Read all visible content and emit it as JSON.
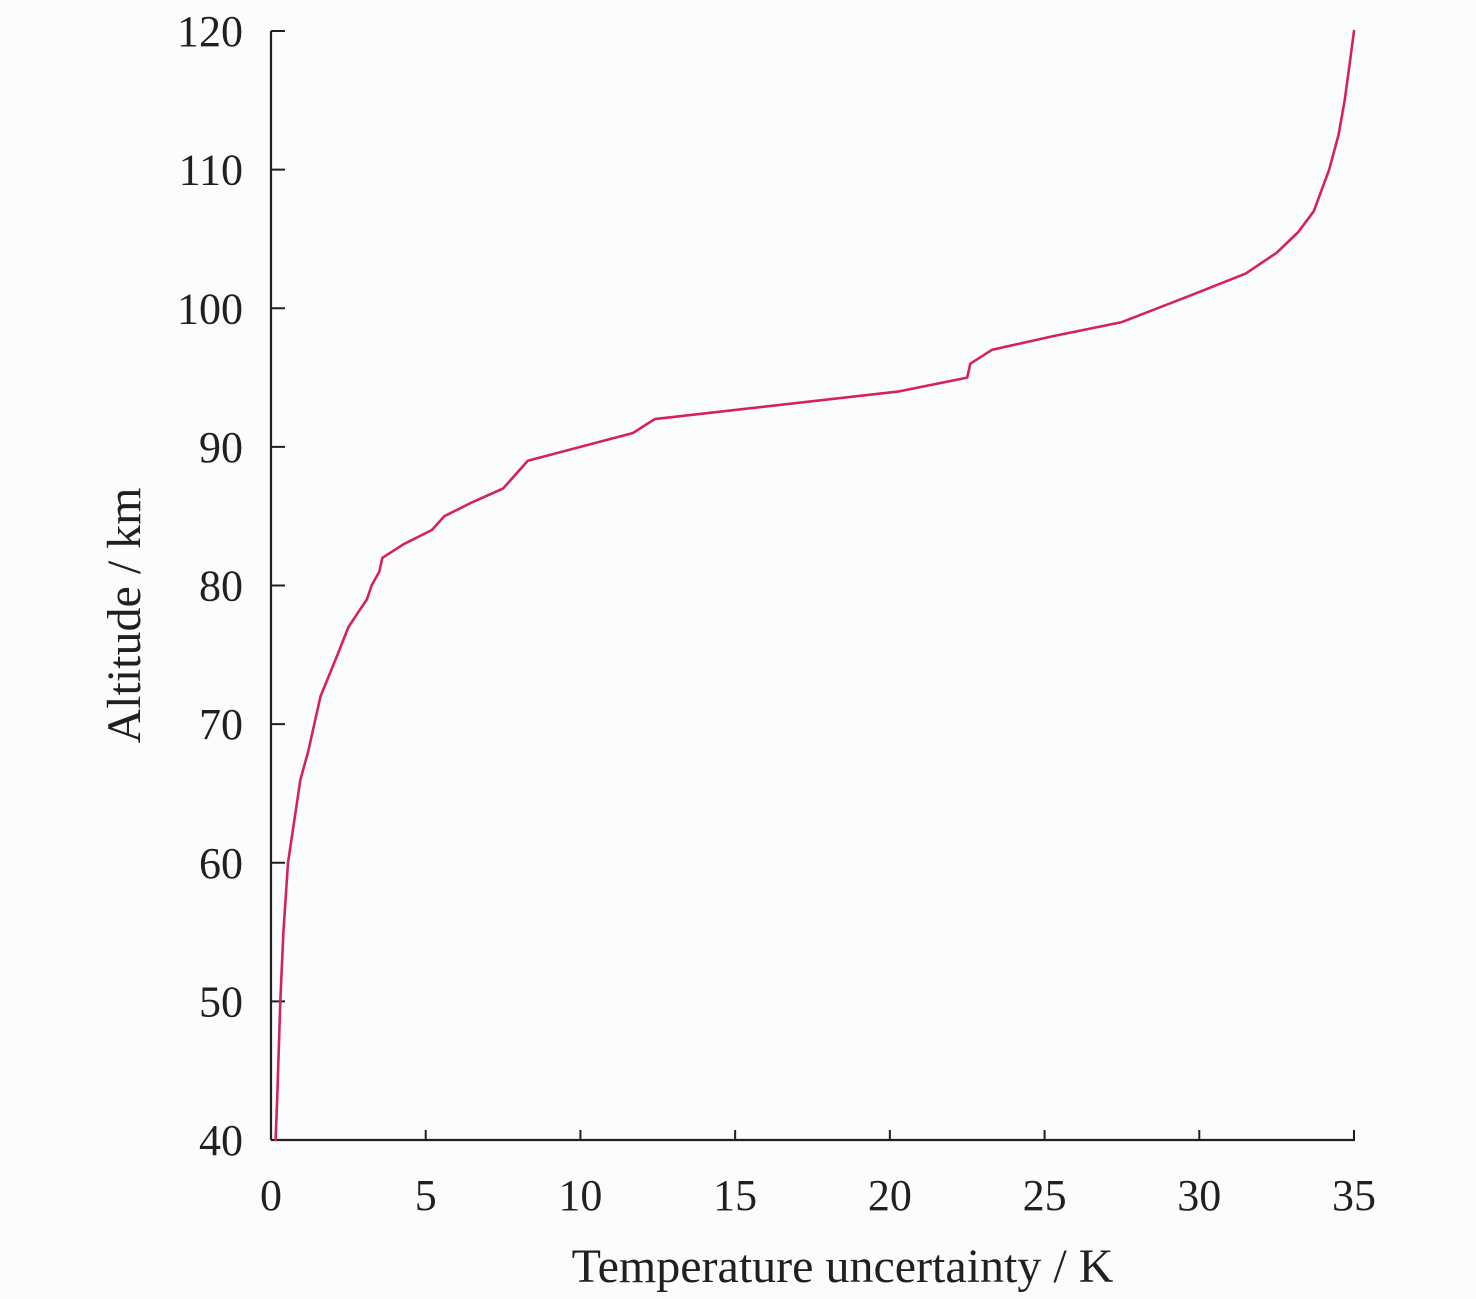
{
  "chart_data": {
    "type": "line",
    "xlabel": "Temperature uncertainty / K",
    "ylabel": "Altitude / km",
    "xlim": [
      0,
      35
    ],
    "ylim": [
      40,
      120
    ],
    "xticks": [
      "0",
      "5",
      "10",
      "15",
      "20",
      "25",
      "30",
      "35"
    ],
    "yticks": [
      "40",
      "50",
      "60",
      "70",
      "80",
      "90",
      "100",
      "110",
      "120"
    ],
    "grid": false,
    "legend": "none",
    "series": [
      {
        "color": "#d6225c",
        "x": [
          0.15,
          0.2,
          0.3,
          0.4,
          0.55,
          0.75,
          0.95,
          1.2,
          1.6,
          2.15,
          2.5,
          2.8,
          3.1,
          3.25,
          3.5,
          3.6,
          4.3,
          5.2,
          5.6,
          6.5,
          7.5,
          8.3,
          11.7,
          12.4,
          20.3,
          22.5,
          22.6,
          23.3,
          25.3,
          27.5,
          29.8,
          31.5,
          32.5,
          33.2,
          33.7,
          34.2,
          34.5,
          34.7,
          34.85,
          35.0
        ],
        "y": [
          40,
          43,
          50,
          55,
          60,
          63,
          66,
          68,
          72,
          75,
          77,
          78,
          79,
          80,
          81,
          82,
          83,
          84,
          85,
          86,
          87,
          89,
          91,
          92,
          94,
          95,
          96,
          97,
          98,
          99,
          101,
          102.5,
          104,
          105.5,
          107,
          110,
          112.5,
          115,
          117.5,
          120
        ]
      }
    ]
  }
}
